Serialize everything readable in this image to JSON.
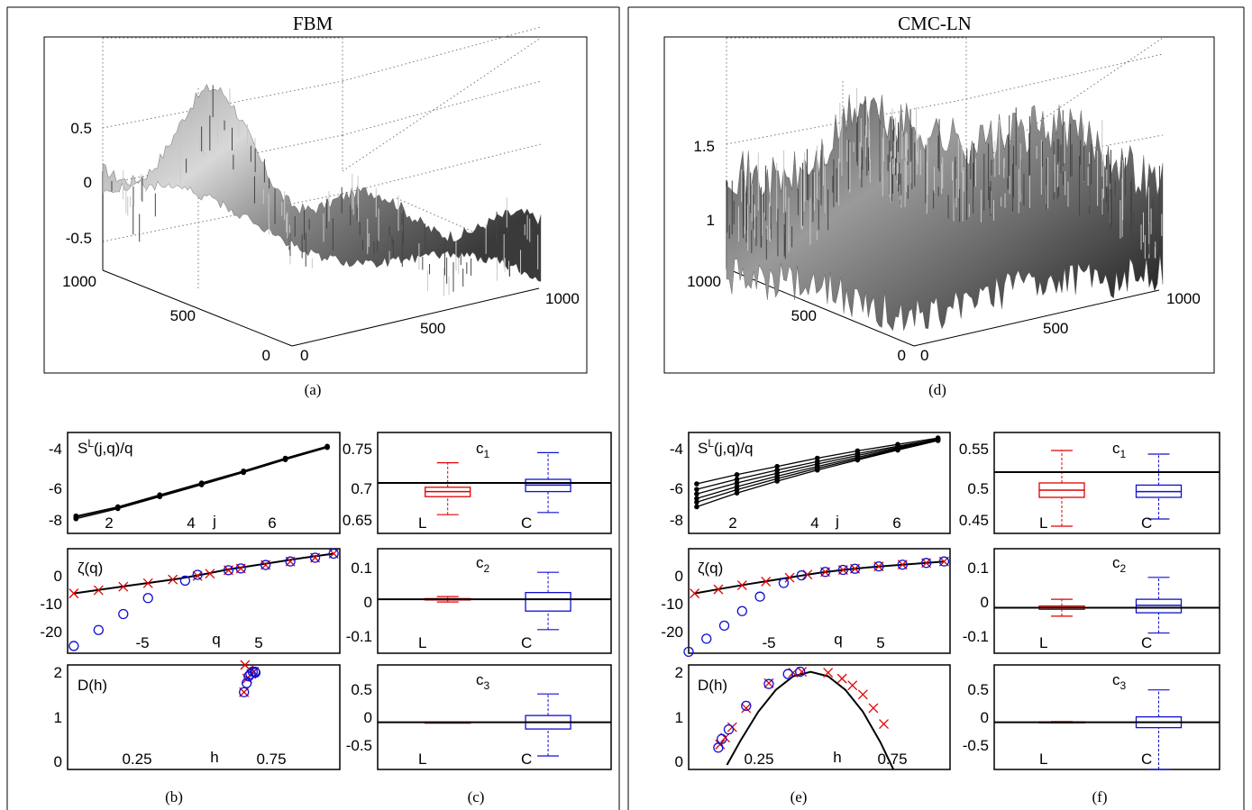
{
  "panels_text": {
    "left_title": "FBM",
    "right_title": "CMC-LN",
    "labels": [
      "(a)",
      "(b)",
      "(c)",
      "(d)",
      "(e)",
      "(f)"
    ]
  },
  "colors": {
    "L": "#e00000",
    "C": "#1010d0",
    "fit": "#000000"
  },
  "chart_data": [
    {
      "id": "a",
      "type": "surface",
      "label": "(a)",
      "title": "FBM",
      "z_ticks": [
        "0.5",
        "0",
        "-0.5"
      ],
      "y_ticks": [
        "1000",
        "500",
        "0"
      ],
      "x_ticks": [
        "0",
        "500",
        "1000"
      ],
      "zlim": [
        -0.9,
        0.8
      ]
    },
    {
      "id": "d",
      "type": "surface",
      "label": "(d)",
      "title": "CMC-LN",
      "z_ticks": [
        "1.5",
        "1"
      ],
      "y_ticks": [
        "1000",
        "500",
        "0"
      ],
      "x_ticks": [
        "0",
        "500",
        "1000"
      ],
      "zlim": [
        0.3,
        1.9
      ]
    },
    {
      "id": "b1",
      "type": "line",
      "ylabel": "S^L(j,q)/q",
      "xlabel": "j",
      "xlim": [
        0.8,
        7.3
      ],
      "ylim": [
        -8.7,
        -3.2
      ],
      "yticks": [
        "-4",
        "-6",
        "-8"
      ],
      "xticks": [
        "2",
        "4",
        "6"
      ],
      "x": [
        1,
        2,
        3,
        4,
        5,
        6,
        7
      ],
      "series": [
        {
          "values": [
            -7.75,
            -7.25,
            -6.6,
            -5.95,
            -5.3,
            -4.6,
            -3.95
          ]
        },
        {
          "values": [
            -7.9,
            -7.35,
            -6.7,
            -6.05,
            -5.38,
            -4.68,
            -4.02
          ]
        },
        {
          "values": [
            -7.82,
            -7.3,
            -6.65,
            -6.0,
            -5.34,
            -4.64,
            -3.98
          ]
        }
      ]
    },
    {
      "id": "b2",
      "type": "scatter",
      "ylabel": "ζ(q)",
      "xlabel": "q",
      "xlim": [
        -11,
        11
      ],
      "ylim": [
        -28,
        8
      ],
      "yticks": [
        "0",
        "-10",
        "-20"
      ],
      "xticks": [
        "-5",
        "5"
      ],
      "fit_x": [
        -10.5,
        -8,
        -6,
        -4,
        -2,
        0,
        2,
        4,
        6,
        8,
        10.5
      ],
      "fit_y": [
        -7.4,
        -5.9,
        -4.7,
        -3.5,
        -2.3,
        -0.8,
        0.9,
        2.2,
        3.5,
        4.8,
        6.3
      ],
      "series": [
        {
          "name": "L",
          "marker": "x",
          "x": [
            -10.5,
            -8.5,
            -6.5,
            -4.5,
            -2.5,
            -0.5,
            0.5,
            2,
            3,
            5,
            7,
            9,
            10.5
          ],
          "y": [
            -7.4,
            -6.3,
            -5.1,
            -3.9,
            -2.6,
            -1.4,
            -0.6,
            0.6,
            1.2,
            2.4,
            3.6,
            4.9,
            6.3
          ]
        },
        {
          "name": "C",
          "marker": "o",
          "x": [
            -10.5,
            -8.5,
            -6.5,
            -4.5,
            -1.5,
            -0.5,
            2,
            3,
            5,
            7,
            9,
            10.5
          ],
          "y": [
            -25.5,
            -20,
            -14.5,
            -9,
            -3,
            -1,
            0.6,
            1.2,
            2.4,
            3.6,
            4.9,
            6.3
          ]
        }
      ]
    },
    {
      "id": "b3",
      "type": "scatter",
      "ylabel": "D(h)",
      "xlabel": "h",
      "xlim": [
        0,
        1
      ],
      "ylim": [
        -0.15,
        2.15
      ],
      "yticks": [
        "2",
        "1",
        "0"
      ],
      "xticks": [
        "0.25",
        "0.75"
      ],
      "series": [
        {
          "name": "L",
          "marker": "x",
          "x": [
            0.648,
            0.652,
            0.66,
            0.668,
            0.675,
            0.685
          ],
          "y": [
            1.55,
            2.15,
            1.85,
            2.05,
            1.95,
            2.0
          ]
        },
        {
          "name": "C",
          "marker": "o",
          "x": [
            0.648,
            0.658,
            0.665,
            0.672,
            0.68,
            0.688,
            0.69
          ],
          "y": [
            1.55,
            1.75,
            1.9,
            1.95,
            2.0,
            2.0,
            1.98
          ]
        }
      ]
    },
    {
      "id": "e1",
      "type": "line",
      "ylabel": "S^L(j,q)/q",
      "xlabel": "j",
      "xlim": [
        0.8,
        7.3
      ],
      "ylim": [
        -8.7,
        -3.2
      ],
      "yticks": [
        "-4",
        "-6",
        "-8"
      ],
      "xticks": [
        "2",
        "4",
        "6"
      ],
      "x": [
        1,
        2,
        3,
        4,
        5,
        6,
        7
      ],
      "series": [
        {
          "values": [
            -6.0,
            -5.5,
            -5.05,
            -4.6,
            -4.2,
            -3.85,
            -3.5
          ]
        },
        {
          "values": [
            -6.3,
            -5.75,
            -5.25,
            -4.78,
            -4.35,
            -3.95,
            -3.55
          ]
        },
        {
          "values": [
            -6.55,
            -5.95,
            -5.42,
            -4.92,
            -4.45,
            -4.02,
            -3.58
          ]
        },
        {
          "values": [
            -6.8,
            -6.15,
            -5.58,
            -5.05,
            -4.55,
            -4.08,
            -3.6
          ]
        },
        {
          "values": [
            -7.0,
            -6.32,
            -5.72,
            -5.15,
            -4.63,
            -4.12,
            -3.62
          ]
        },
        {
          "values": [
            -7.25,
            -6.5,
            -5.85,
            -5.25,
            -4.7,
            -4.16,
            -3.64
          ]
        }
      ]
    },
    {
      "id": "e2",
      "type": "scatter",
      "ylabel": "ζ(q)",
      "xlabel": "q",
      "xlim": [
        -11,
        11
      ],
      "ylim": [
        -28,
        8
      ],
      "yticks": [
        "0",
        "-10",
        "-20"
      ],
      "xticks": [
        "-5",
        "5"
      ],
      "fit_x": [
        -10.5,
        -8,
        -6,
        -4,
        -2,
        0,
        2,
        4,
        6,
        8,
        10.5
      ],
      "fit_y": [
        -7.4,
        -5.6,
        -4.2,
        -2.9,
        -1.6,
        -0.3,
        0.7,
        1.5,
        2.2,
        2.8,
        3.6
      ],
      "series": [
        {
          "name": "L",
          "marker": "x",
          "x": [
            -10.5,
            -8.5,
            -6.5,
            -4.5,
            -2.5,
            -1,
            0.5,
            2,
            3,
            5,
            7,
            9,
            10.5
          ],
          "y": [
            -7.4,
            -6.0,
            -4.6,
            -3.3,
            -2.0,
            -0.9,
            0.0,
            0.7,
            1.1,
            1.9,
            2.5,
            3.1,
            3.6
          ]
        },
        {
          "name": "C",
          "marker": "o",
          "x": [
            -11,
            -9.5,
            -8,
            -6.5,
            -5,
            -3,
            -1.5,
            0.5,
            2,
            3,
            5,
            7,
            9,
            10.5
          ],
          "y": [
            -27.5,
            -23,
            -18.5,
            -13.5,
            -8.5,
            -3.8,
            -1.2,
            0.0,
            0.7,
            1.1,
            1.9,
            2.5,
            3.1,
            3.6
          ]
        }
      ]
    },
    {
      "id": "e3",
      "type": "scatter",
      "ylabel": "D(h)",
      "xlabel": "h",
      "xlim": [
        0.1,
        0.85
      ],
      "ylim": [
        -0.15,
        2.15
      ],
      "yticks": [
        "2",
        "1",
        "0"
      ],
      "xticks": [
        "0.25",
        "0.75"
      ],
      "fit_x": [
        0.21,
        0.25,
        0.3,
        0.35,
        0.4,
        0.45,
        0.5,
        0.55,
        0.6,
        0.65,
        0.7,
        0.75
      ],
      "fit_y": [
        -0.05,
        0.5,
        1.12,
        1.6,
        1.9,
        2.0,
        1.9,
        1.6,
        1.12,
        0.45,
        -0.35,
        -1.3
      ],
      "series": [
        {
          "name": "L",
          "marker": "x",
          "x": [
            0.19,
            0.205,
            0.225,
            0.265,
            0.33,
            0.4,
            0.425,
            0.5,
            0.54,
            0.57,
            0.6,
            0.63,
            0.66
          ],
          "y": [
            0.4,
            0.55,
            0.78,
            1.2,
            1.75,
            1.98,
            2.0,
            1.98,
            1.85,
            1.7,
            1.5,
            1.2,
            0.85
          ]
        },
        {
          "name": "C",
          "marker": "o",
          "x": [
            0.185,
            0.195,
            0.215,
            0.265,
            0.33,
            0.385,
            0.42
          ],
          "y": [
            0.33,
            0.52,
            0.73,
            1.25,
            1.73,
            1.95,
            2.0
          ]
        }
      ]
    },
    {
      "id": "c1",
      "type": "boxplot",
      "title": "c_1",
      "ylim": [
        0.63,
        0.77
      ],
      "yticks": [
        "0.75",
        "0.7",
        "0.65"
      ],
      "ref_line": 0.7,
      "categories": [
        "L",
        "C"
      ],
      "boxes": [
        {
          "name": "L",
          "whisker_low": 0.656,
          "q1": 0.681,
          "median": 0.688,
          "q3": 0.694,
          "whisker_high": 0.728
        },
        {
          "name": "C",
          "whisker_low": 0.659,
          "q1": 0.688,
          "median": 0.697,
          "q3": 0.705,
          "whisker_high": 0.742
        }
      ]
    },
    {
      "id": "c2",
      "type": "boxplot",
      "title": "c_2",
      "ylim": [
        -0.16,
        0.15
      ],
      "yticks": [
        "0.1",
        "0",
        "-0.1"
      ],
      "ref_line": 0.0,
      "categories": [
        "L",
        "C"
      ],
      "boxes": [
        {
          "name": "L",
          "whisker_low": -0.008,
          "q1": -0.002,
          "median": 0.0,
          "q3": 0.002,
          "whisker_high": 0.008
        },
        {
          "name": "C",
          "whisker_low": -0.09,
          "q1": -0.035,
          "median": 0.0,
          "q3": 0.02,
          "whisker_high": 0.08
        }
      ]
    },
    {
      "id": "c3",
      "type": "boxplot",
      "title": "c_3",
      "ylim": [
        -0.7,
        0.85
      ],
      "yticks": [
        "0.5",
        "0",
        "-0.5"
      ],
      "ref_line": 0.0,
      "categories": [
        "L",
        "C"
      ],
      "boxes": [
        {
          "name": "L",
          "whisker_low": 0.0,
          "q1": 0.0,
          "median": 0.0,
          "q3": 0.0,
          "whisker_high": 0.0
        },
        {
          "name": "C",
          "whisker_low": -0.5,
          "q1": -0.1,
          "median": 0.0,
          "q3": 0.1,
          "whisker_high": 0.42
        }
      ]
    },
    {
      "id": "f1",
      "type": "boxplot",
      "title": "c_1",
      "ylim": [
        0.43,
        0.57
      ],
      "yticks": [
        "0.55",
        "0.5",
        "0.45"
      ],
      "ref_line": 0.515,
      "categories": [
        "L",
        "C"
      ],
      "boxes": [
        {
          "name": "L",
          "whisker_low": 0.44,
          "q1": 0.48,
          "median": 0.49,
          "q3": 0.5,
          "whisker_high": 0.545
        },
        {
          "name": "C",
          "whisker_low": 0.45,
          "q1": 0.48,
          "median": 0.488,
          "q3": 0.497,
          "whisker_high": 0.54
        }
      ]
    },
    {
      "id": "f2",
      "type": "boxplot",
      "title": "c_2",
      "ylim": [
        -0.16,
        0.15
      ],
      "yticks": [
        "0.1",
        "0",
        "-0.1"
      ],
      "ref_line": -0.025,
      "categories": [
        "L",
        "C"
      ],
      "boxes": [
        {
          "name": "L",
          "whisker_low": -0.05,
          "q1": -0.03,
          "median": -0.025,
          "q3": -0.02,
          "whisker_high": 0.0
        },
        {
          "name": "C",
          "whisker_low": -0.1,
          "q1": -0.04,
          "median": -0.018,
          "q3": 0.0,
          "whisker_high": 0.065
        }
      ]
    },
    {
      "id": "f3",
      "type": "boxplot",
      "title": "c_3",
      "ylim": [
        -0.7,
        0.85
      ],
      "yticks": [
        "0.5",
        "0",
        "-0.5"
      ],
      "ref_line": 0.0,
      "categories": [
        "L",
        "C"
      ],
      "boxes": [
        {
          "name": "L",
          "whisker_low": -0.01,
          "q1": -0.005,
          "median": 0.0,
          "q3": 0.005,
          "whisker_high": 0.01
        },
        {
          "name": "C",
          "whisker_low": -0.7,
          "q1": -0.08,
          "median": 0.0,
          "q3": 0.08,
          "whisker_high": 0.48
        }
      ]
    }
  ]
}
